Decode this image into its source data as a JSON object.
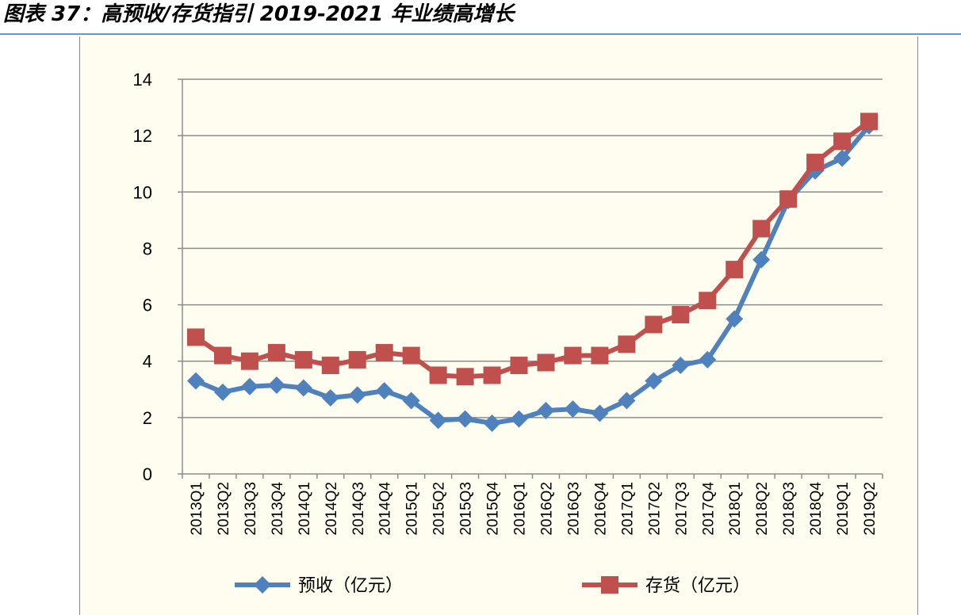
{
  "figure": {
    "title": "图表 37：高预收/存货指引 2019-2021 年业绩高增长"
  },
  "chart_data": {
    "type": "line",
    "title": "",
    "xlabel": "",
    "ylabel": "",
    "ylim": [
      0,
      14
    ],
    "yticks": [
      0,
      2,
      4,
      6,
      8,
      10,
      12,
      14
    ],
    "grid": true,
    "legend_position": "bottom",
    "categories": [
      "2013Q1",
      "2013Q2",
      "2013Q3",
      "2013Q4",
      "2014Q1",
      "2014Q2",
      "2014Q3",
      "2014Q4",
      "2015Q1",
      "2015Q2",
      "2015Q3",
      "2015Q4",
      "2016Q1",
      "2016Q2",
      "2016Q3",
      "2016Q4",
      "2017Q1",
      "2017Q2",
      "2017Q3",
      "2017Q4",
      "2018Q1",
      "2018Q2",
      "2018Q3",
      "2018Q4",
      "2019Q1",
      "2019Q2"
    ],
    "series": [
      {
        "name": "预收（亿元）",
        "color": "#4f81bd",
        "marker": "diamond",
        "values": [
          3.3,
          2.9,
          3.1,
          3.15,
          3.05,
          2.7,
          2.8,
          2.95,
          2.6,
          1.9,
          1.95,
          1.8,
          1.95,
          2.25,
          2.3,
          2.15,
          2.6,
          3.3,
          3.85,
          4.05,
          5.5,
          7.6,
          9.7,
          10.75,
          11.2,
          12.35
        ]
      },
      {
        "name": "存货（亿元）",
        "color": "#c0504d",
        "marker": "square",
        "values": [
          4.85,
          4.2,
          4.0,
          4.3,
          4.05,
          3.85,
          4.05,
          4.3,
          4.2,
          3.5,
          3.45,
          3.5,
          3.85,
          3.95,
          4.2,
          4.2,
          4.6,
          5.3,
          5.65,
          6.15,
          7.25,
          8.7,
          9.75,
          11.05,
          11.8,
          12.5
        ]
      }
    ]
  }
}
